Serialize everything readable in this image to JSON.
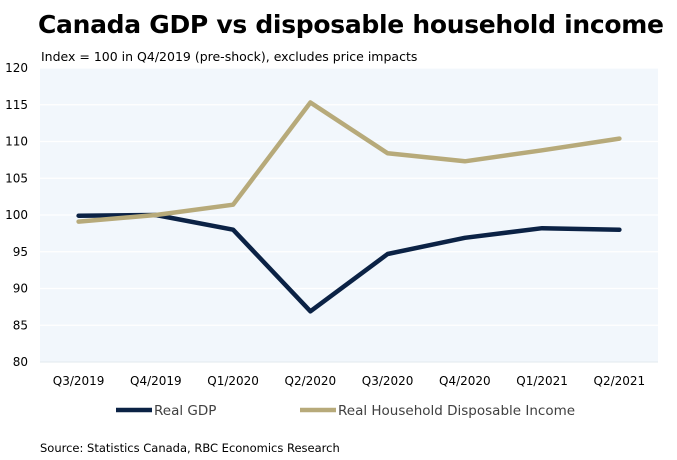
{
  "chart_data": {
    "type": "line",
    "title": "Canada GDP vs disposable household income",
    "subtitle": "Index = 100 in Q4/2019 (pre-shock), excludes price impacts",
    "categories": [
      "Q3/2019",
      "Q4/2019",
      "Q1/2020",
      "Q2/2020",
      "Q3/2020",
      "Q4/2020",
      "Q1/2021",
      "Q2/2021"
    ],
    "series": [
      {
        "name": "Real GDP",
        "color": "#0b2245",
        "values": [
          99.9,
          100.0,
          98.0,
          86.9,
          94.7,
          96.9,
          98.2,
          98.0
        ]
      },
      {
        "name": "Real Household Disposable Income",
        "color": "#b7aa7a",
        "values": [
          99.1,
          100.0,
          101.4,
          115.3,
          108.4,
          107.3,
          108.8,
          110.4
        ]
      }
    ],
    "ylim": [
      80,
      120
    ],
    "yticks": [
      80,
      85,
      90,
      95,
      100,
      105,
      110,
      115,
      120
    ],
    "xlabel": "",
    "ylabel": "",
    "grid": true,
    "legend": "bottom",
    "plot_background": "#f2f7fc",
    "source": "Source: Statistics Canada, RBC Economics Research"
  }
}
